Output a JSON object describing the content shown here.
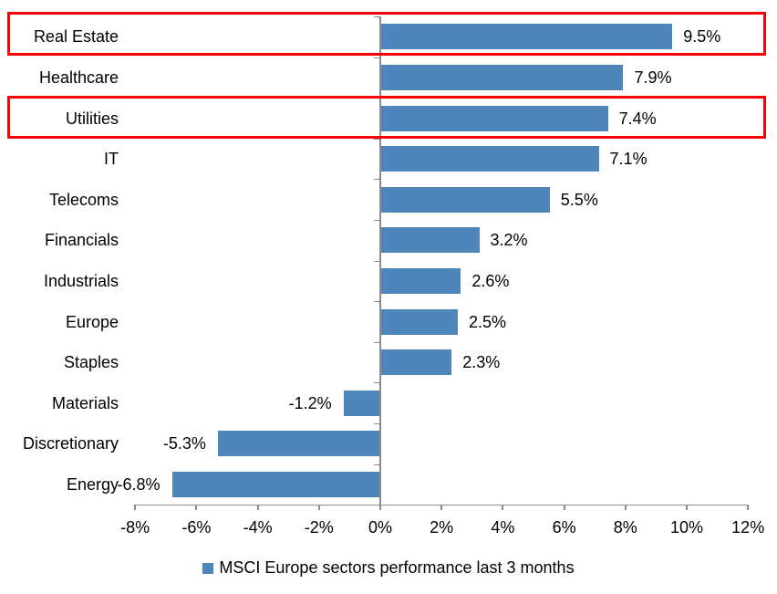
{
  "colors": {
    "bar": "#4E86BC",
    "highlight_box": "#FF0000",
    "axis": "#8C8C8C",
    "text": "#000000",
    "background": "#FFFFFF"
  },
  "chart_data": {
    "type": "bar",
    "orientation": "horizontal",
    "title": "",
    "categories": [
      "Real Estate",
      "Healthcare",
      "Utilities",
      "IT",
      "Telecoms",
      "Financials",
      "Industrials",
      "Europe",
      "Staples",
      "Materials",
      "Discretionary",
      "Energy"
    ],
    "values": [
      9.5,
      7.9,
      7.4,
      7.1,
      5.5,
      3.2,
      2.6,
      2.5,
      2.3,
      -1.2,
      -5.3,
      -6.8
    ],
    "data_labels": [
      "9.5%",
      "7.9%",
      "7.4%",
      "7.1%",
      "5.5%",
      "3.2%",
      "2.6%",
      "2.5%",
      "2.3%",
      "-1.2%",
      "-5.3%",
      "-6.8%"
    ],
    "x_tick_labels": [
      "-8%",
      "-6%",
      "-4%",
      "-2%",
      "0%",
      "2%",
      "4%",
      "6%",
      "8%",
      "10%",
      "12%"
    ],
    "x_tick_values": [
      -8,
      -6,
      -4,
      -2,
      0,
      2,
      4,
      6,
      8,
      10,
      12
    ],
    "xlim": [
      -8,
      12
    ],
    "grid": false,
    "legend": "MSCI Europe sectors performance last 3 months",
    "legend_position": "bottom",
    "highlighted_categories": [
      "Real Estate",
      "Utilities"
    ]
  }
}
